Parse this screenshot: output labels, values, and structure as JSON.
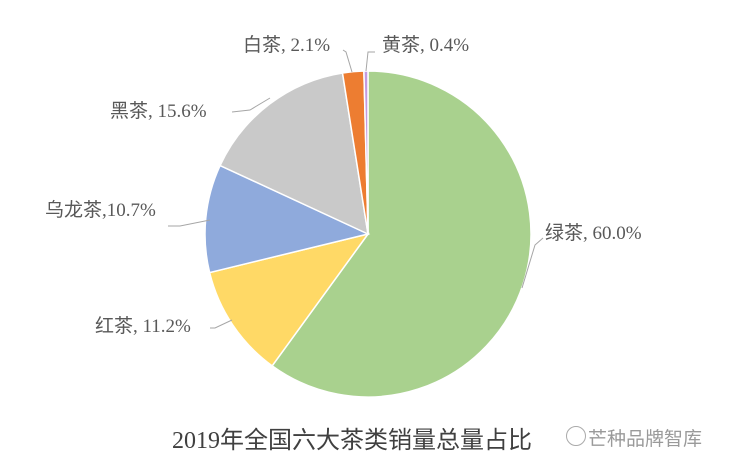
{
  "chart_data": {
    "type": "pie",
    "title": "2019年全国六大茶类销量总量占比",
    "start_angle": "12 o'clock, clockwise",
    "slices": [
      {
        "name": "绿茶",
        "value": 60.0,
        "label": "绿茶, 60.0%",
        "color": "#A9D18E"
      },
      {
        "name": "红茶",
        "value": 11.2,
        "label": "红茶, 11.2%",
        "color": "#FFD966"
      },
      {
        "name": "乌龙茶",
        "value": 10.7,
        "label": "乌龙茶,10.7%",
        "color": "#8FAADC"
      },
      {
        "name": "黑茶",
        "value": 15.6,
        "label": "黑茶, 15.6%",
        "color": "#C9C9C9"
      },
      {
        "name": "白茶",
        "value": 2.1,
        "label": "白茶, 2.1%",
        "color": "#ED7D31"
      },
      {
        "name": "黄茶",
        "value": 0.4,
        "label": "黄茶, 0.4%",
        "color": "#C39BE0"
      }
    ]
  },
  "watermark": "芒种品牌智库"
}
